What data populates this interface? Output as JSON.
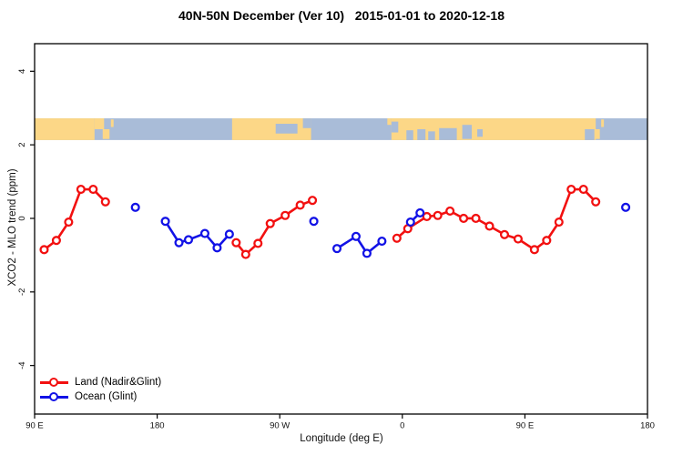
{
  "title": "40N-50N December (Ver 10)   2015-01-01 to 2020-12-18",
  "chart_data": {
    "type": "line",
    "title": "40N-50N December (Ver 10)   2015-01-01 to 2020-12-18",
    "xlabel": "Longitude (deg E)",
    "ylabel": "XCO2 - MLO trend (ppm)",
    "xlim": [
      90,
      540
    ],
    "ylim": [
      -5.32,
      4.75
    ],
    "grid": false,
    "legend_position": "bottom-left",
    "xticks": [
      {
        "v": 90,
        "label": "90 E"
      },
      {
        "v": 180,
        "label": "180"
      },
      {
        "v": 270,
        "label": "90 W"
      },
      {
        "v": 360,
        "label": "0"
      },
      {
        "v": 450,
        "label": "90 E"
      },
      {
        "v": 540,
        "label": "180"
      }
    ],
    "yticks": [
      {
        "v": 4,
        "label": "4"
      },
      {
        "v": 2,
        "label": "2"
      },
      {
        "v": 0,
        "label": "0"
      },
      {
        "v": -2,
        "label": "-2"
      },
      {
        "v": -4,
        "label": "-4"
      }
    ],
    "legend": [
      {
        "label": "Land (Nadir&Glint)",
        "color": "#f21010"
      },
      {
        "label": "Ocean (Glint)",
        "color": "#1212e6"
      }
    ],
    "series": [
      {
        "id": "land",
        "name": "Land (Nadir&Glint)",
        "color": "#f21010",
        "marker": "open-circle",
        "segments": [
          [
            [
              97,
              -0.85
            ],
            [
              106,
              -0.6
            ],
            [
              115,
              -0.1
            ],
            [
              124,
              0.79
            ],
            [
              133,
              0.79
            ],
            [
              142,
              0.45
            ]
          ],
          [
            [
              238,
              -0.66
            ],
            [
              245,
              -0.98
            ],
            [
              254,
              -0.68
            ],
            [
              263,
              -0.14
            ],
            [
              274,
              0.08
            ],
            [
              285,
              0.36
            ],
            [
              294,
              0.49
            ]
          ],
          [
            [
              356,
              -0.54
            ],
            [
              364,
              -0.28
            ],
            [
              378,
              0.05
            ],
            [
              386,
              0.08
            ],
            [
              395,
              0.2
            ],
            [
              405,
              0.0
            ],
            [
              414,
              0.0
            ],
            [
              424,
              -0.21
            ],
            [
              435,
              -0.44
            ],
            [
              445,
              -0.56
            ],
            [
              457,
              -0.85
            ],
            [
              466,
              -0.6
            ],
            [
              475,
              -0.1
            ],
            [
              484,
              0.79
            ],
            [
              493,
              0.79
            ],
            [
              502,
              0.45
            ]
          ]
        ]
      },
      {
        "id": "ocean",
        "name": "Ocean (Glint)",
        "color": "#1212e6",
        "marker": "open-circle",
        "segments": [
          [
            [
              164,
              0.3
            ]
          ],
          [
            [
              186,
              -0.08
            ],
            [
              196,
              -0.66
            ],
            [
              203,
              -0.58
            ],
            [
              215,
              -0.41
            ],
            [
              224,
              -0.8
            ],
            [
              233,
              -0.43
            ]
          ],
          [
            [
              295,
              -0.08
            ]
          ],
          [
            [
              312,
              -0.82
            ],
            [
              326,
              -0.49
            ],
            [
              334,
              -0.95
            ],
            [
              345,
              -0.62
            ]
          ],
          [
            [
              366,
              -0.1
            ],
            [
              373,
              0.15
            ]
          ],
          [
            [
              524,
              0.3
            ]
          ]
        ]
      }
    ],
    "map_band": {
      "description": "world map strip of 40N-50N latitude band",
      "value_range": [
        2.13,
        2.72
      ],
      "ocean": "#a9bcd8",
      "land": "#fcd787",
      "land_rects": [
        [
          90,
          134,
          0,
          1
        ],
        [
          134,
          141,
          0,
          0.5
        ],
        [
          140,
          145,
          0.5,
          0.45
        ],
        [
          146,
          148,
          0.05,
          0.35
        ],
        [
          235,
          293,
          0,
          1
        ],
        [
          349,
          352,
          0,
          0.3
        ],
        [
          352,
          502,
          0,
          1
        ],
        [
          500,
          505,
          0.5,
          0.45
        ],
        [
          506,
          508,
          0.05,
          0.35
        ]
      ],
      "ocean_rects": [
        [
          267,
          283,
          0.25,
          0.45
        ],
        [
          287,
          293,
          0,
          0.45
        ],
        [
          352,
          357,
          0.15,
          0.5
        ],
        [
          363,
          368,
          0.55,
          0.45
        ],
        [
          371,
          377,
          0.5,
          0.5
        ],
        [
          379,
          384,
          0.6,
          0.4
        ],
        [
          387,
          400,
          0.45,
          0.55
        ],
        [
          404,
          411,
          0.3,
          0.65
        ],
        [
          415,
          419,
          0.5,
          0.35
        ],
        [
          494,
          501,
          0.5,
          0.5
        ]
      ]
    }
  }
}
